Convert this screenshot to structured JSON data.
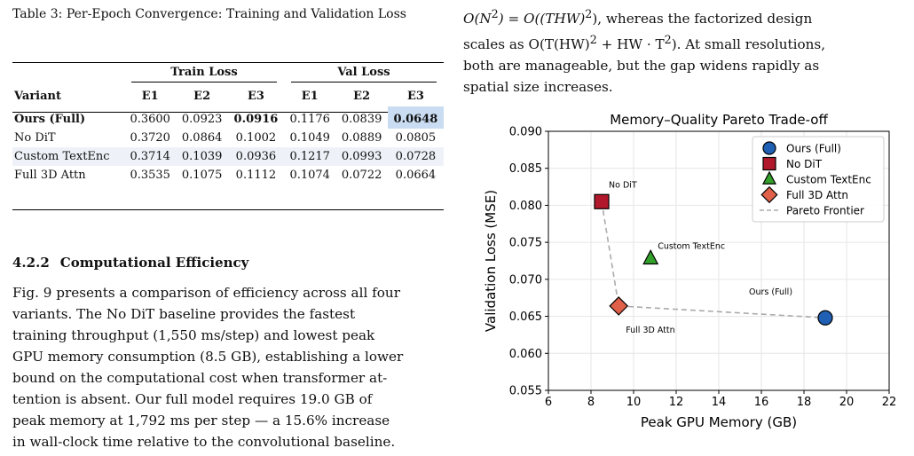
{
  "table": {
    "caption": "Table 3: Per-Epoch Convergence: Training and Validation Loss",
    "group_headers": {
      "train": "Train Loss",
      "val": "Val Loss"
    },
    "columns": [
      "Variant",
      "E1",
      "E2",
      "E3",
      "E1",
      "E2",
      "E3"
    ],
    "rows": [
      {
        "variant": "Ours (Full)",
        "values": [
          "0.3600",
          "0.0923",
          "0.0916",
          "0.1176",
          "0.0839",
          "0.0648"
        ]
      },
      {
        "variant": "No DiT",
        "values": [
          "0.3720",
          "0.0864",
          "0.1002",
          "0.1049",
          "0.0889",
          "0.0805"
        ]
      },
      {
        "variant": "Custom TextEnc",
        "values": [
          "0.3714",
          "0.1039",
          "0.0936",
          "0.1217",
          "0.0993",
          "0.0728"
        ]
      },
      {
        "variant": "Full 3D Attn",
        "values": [
          "0.3535",
          "0.1075",
          "0.1112",
          "0.1074",
          "0.0722",
          "0.0664"
        ]
      }
    ]
  },
  "section": {
    "number": "4.2.2",
    "title": "Computational Efficiency",
    "lines": [
      "Fig. 9 presents a comparison of efficiency across all four",
      "variants.  The No DiT baseline provides the fastest",
      "training throughput (1,550 ms/step) and lowest peak",
      "GPU memory consumption (8.5 GB), establishing a lower",
      "bound on the computational cost when transformer at-",
      "tention is absent. Our full model requires 19.0 GB of",
      "peak memory at 1,792 ms per step — a 15.6% increase",
      "in wall-clock time relative to the convolutional baseline."
    ]
  },
  "right_text": {
    "line1_a": "O(N",
    "line1_b": ") = O((THW)",
    "line1_c": "), whereas the factorized design",
    "line2_a": "scales as O(T(HW)",
    "line2_b": " + HW · T",
    "line2_c": "). At small resolutions,",
    "line3": "both are manageable, but the gap widens rapidly as",
    "line4": "spatial size increases."
  },
  "chart_data": {
    "type": "scatter",
    "title": "Memory–Quality Pareto Trade-off",
    "xlabel": "Peak GPU Memory (GB)",
    "ylabel": "Validation Loss (MSE)",
    "xlim": [
      6,
      22
    ],
    "ylim": [
      0.055,
      0.09
    ],
    "xticks": [
      6,
      8,
      10,
      12,
      14,
      16,
      18,
      20,
      22
    ],
    "yticks": [
      "0.055",
      "0.060",
      "0.065",
      "0.070",
      "0.075",
      "0.080",
      "0.085",
      "0.090"
    ],
    "grid": true,
    "legend_position": "top-right",
    "points": [
      {
        "name": "Ours (Full)",
        "label": "Ours (Full)",
        "x": 19.0,
        "y": 0.0648,
        "marker": "circle",
        "color": "#1f5fb4"
      },
      {
        "name": "No DiT",
        "label": "No DiT",
        "x": 8.5,
        "y": 0.0805,
        "marker": "square",
        "color": "#b2182b"
      },
      {
        "name": "Custom TextEnc",
        "label": "Custom TextEnc",
        "x": 10.8,
        "y": 0.0728,
        "marker": "triangle",
        "color": "#33a02c"
      },
      {
        "name": "Full 3D Attn",
        "label": "Full 3D Attn",
        "x": 9.3,
        "y": 0.0664,
        "marker": "diamond",
        "color": "#e0604a"
      }
    ],
    "frontier": {
      "name": "Pareto Frontier",
      "points": [
        [
          8.5,
          0.0805
        ],
        [
          9.3,
          0.0664
        ],
        [
          19.0,
          0.0648
        ]
      ],
      "color": "#aaaaaa"
    }
  }
}
